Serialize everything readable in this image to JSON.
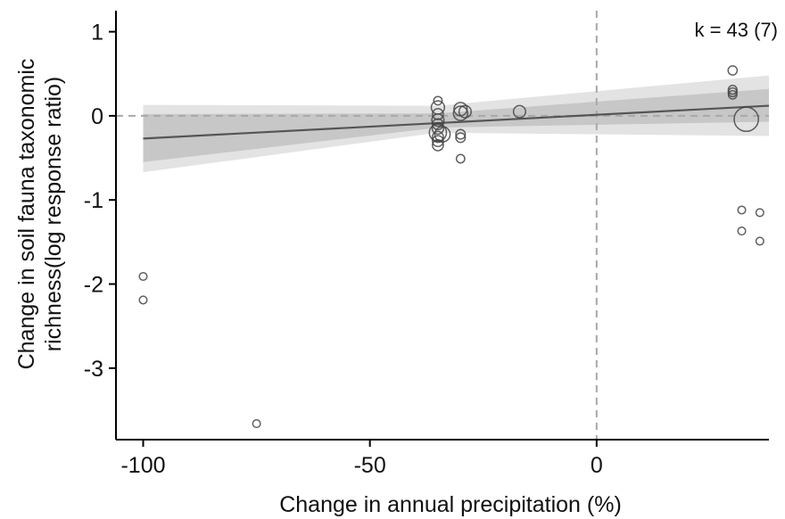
{
  "chart_data": {
    "type": "scatter",
    "title": "",
    "xlabel": "Change in annual precipitation (%)",
    "ylabel_lines": [
      "Change in soil fauna taxonomic",
      "richness(log response ratio)"
    ],
    "xlim": [
      -106,
      38
    ],
    "ylim": [
      -3.85,
      1.25
    ],
    "x_ticks": [
      -100,
      -50,
      0
    ],
    "x_tick_labels": [
      "-100",
      "-50",
      "0"
    ],
    "y_ticks": [
      1,
      0,
      -1,
      -2,
      -3
    ],
    "y_tick_labels": [
      "1",
      "0",
      "-1",
      "-2",
      "-3"
    ],
    "annotation": "k = 43 (7)",
    "grid": false,
    "reference_lines": {
      "x": 0,
      "y": 0
    },
    "point_style": {
      "stroke": "#444444",
      "fill": "none"
    },
    "points": [
      {
        "x": -100,
        "y": -1.91,
        "w": 1
      },
      {
        "x": -100,
        "y": -2.19,
        "w": 1
      },
      {
        "x": -75,
        "y": -3.66,
        "w": 1
      },
      {
        "x": -35,
        "y": 0.18,
        "w": 1.2
      },
      {
        "x": -35,
        "y": 0.1,
        "w": 3
      },
      {
        "x": -35,
        "y": 0.02,
        "w": 2
      },
      {
        "x": -35,
        "y": -0.05,
        "w": 2.5
      },
      {
        "x": -35,
        "y": -0.1,
        "w": 2
      },
      {
        "x": -35,
        "y": -0.15,
        "w": 2.2
      },
      {
        "x": -35,
        "y": -0.2,
        "w": 5
      },
      {
        "x": -35,
        "y": -0.25,
        "w": 2
      },
      {
        "x": -35,
        "y": -0.3,
        "w": 2
      },
      {
        "x": -35,
        "y": -0.35,
        "w": 2
      },
      {
        "x": -34,
        "y": -0.22,
        "w": 4
      },
      {
        "x": -30,
        "y": 0.08,
        "w": 3
      },
      {
        "x": -30,
        "y": 0.03,
        "w": 3.5
      },
      {
        "x": -29,
        "y": 0.05,
        "w": 2.5
      },
      {
        "x": -30,
        "y": -0.22,
        "w": 1.5
      },
      {
        "x": -30,
        "y": -0.26,
        "w": 1.5
      },
      {
        "x": -30,
        "y": -0.51,
        "w": 1.2
      },
      {
        "x": -17,
        "y": 0.05,
        "w": 2.5
      },
      {
        "x": 30,
        "y": 0.54,
        "w": 1.4
      },
      {
        "x": 30,
        "y": 0.31,
        "w": 1.3
      },
      {
        "x": 30,
        "y": 0.28,
        "w": 1.3
      },
      {
        "x": 30,
        "y": 0.25,
        "w": 1.2
      },
      {
        "x": 33,
        "y": -0.04,
        "w": 10
      },
      {
        "x": 32,
        "y": -1.12,
        "w": 1
      },
      {
        "x": 36,
        "y": -1.15,
        "w": 1
      },
      {
        "x": 32,
        "y": -1.37,
        "w": 1
      },
      {
        "x": 36,
        "y": -1.49,
        "w": 1
      }
    ],
    "regression": {
      "x": [
        -100,
        38
      ],
      "y": [
        -0.27,
        0.12
      ],
      "ci_inner": {
        "x": [
          -100,
          -35,
          38
        ],
        "lower": [
          -0.55,
          -0.14,
          -0.07
        ],
        "upper": [
          0.02,
          0.03,
          0.32
        ]
      },
      "ci_outer": {
        "x": [
          -100,
          -35,
          38
        ],
        "lower": [
          -0.67,
          -0.2,
          -0.24
        ],
        "upper": [
          0.13,
          0.12,
          0.48
        ]
      },
      "line_color": "#555555",
      "inner_band_color": "#c7c7c7",
      "outer_band_color": "#e3e3e3"
    }
  }
}
